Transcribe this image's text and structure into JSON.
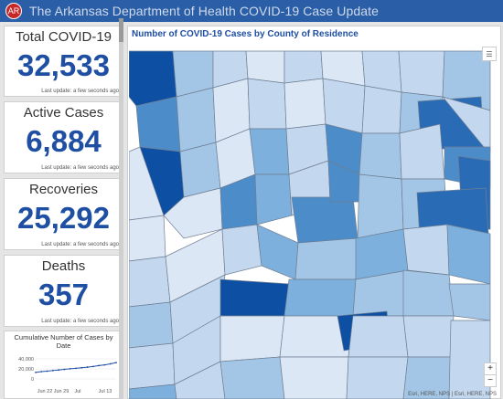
{
  "header": {
    "title": "The Arkansas Department of Health COVID-19 Case Update"
  },
  "cards": [
    {
      "label": "Total COVID-19",
      "value": "32,533",
      "update": "Last update: a few seconds ago"
    },
    {
      "label": "Active Cases",
      "value": "6,884",
      "update": "Last update: a few seconds ago"
    },
    {
      "label": "Recoveries",
      "value": "25,292",
      "update": "Last update: a few seconds ago"
    },
    {
      "label": "Deaths",
      "value": "357",
      "update": "Last update: a few seconds ago"
    }
  ],
  "chart_data": {
    "type": "line",
    "title": "Cumulative Number of Cases by Date",
    "ylabel": "",
    "xlabel": "",
    "y_ticks": [
      "40,000",
      "20,000",
      "0"
    ],
    "ylim": [
      0,
      40000
    ],
    "x_ticks": [
      "Jun 22",
      "Jun 29",
      "Jul",
      "Jul 13"
    ],
    "x": [
      "Jun 16",
      "Jun 18",
      "Jun 20",
      "Jun 22",
      "Jun 24",
      "Jun 26",
      "Jun 28",
      "Jun 30",
      "Jul 2",
      "Jul 4",
      "Jul 6",
      "Jul 8",
      "Jul 10",
      "Jul 12",
      "Jul 14"
    ],
    "values": [
      13000,
      14500,
      15500,
      16700,
      17800,
      19000,
      20200,
      21200,
      22300,
      23500,
      24700,
      26500,
      28000,
      30000,
      32500
    ]
  },
  "map": {
    "title": "Number of COVID-19 Cases by County of Residence",
    "attribution": "Esri, HERE, NPS | Esri, HERE, NPS",
    "zoom_in": "+",
    "zoom_out": "−",
    "list_icon": "☰",
    "colors": {
      "lightest": "#dbe7f5",
      "light": "#c3d8ee",
      "mid_light": "#a4c6e6",
      "mid": "#7db0dc",
      "mid_dark": "#4b8cc9",
      "dark": "#2a6bb6",
      "darkest": "#0d4fa3",
      "border": "#6f7f94"
    }
  },
  "seal_icon": "AR"
}
